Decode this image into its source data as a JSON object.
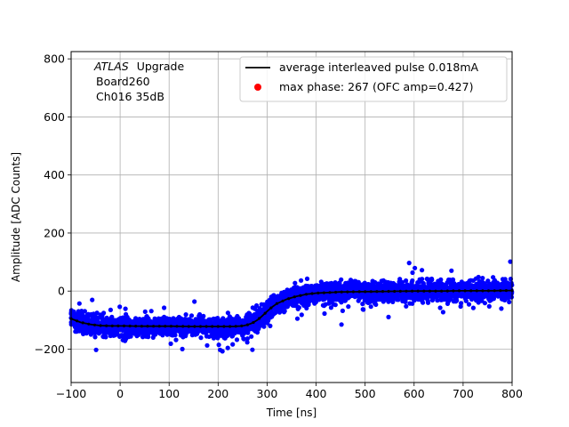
{
  "chart_data": {
    "type": "scatter",
    "xlabel": "Time [ns]",
    "ylabel": "Amplitude [ADC Counts]",
    "xlim": [
      -100,
      800
    ],
    "ylim": [
      -315,
      825
    ],
    "xticks": [
      -100,
      0,
      100,
      200,
      300,
      400,
      500,
      600,
      700,
      800
    ],
    "yticks": [
      -200,
      0,
      200,
      400,
      600,
      800
    ],
    "grid": true,
    "legend_position": "top-right",
    "annotation": {
      "italic": "ATLAS",
      "lines": [
        "Upgrade",
        "Board260",
        "Ch016 35dB"
      ]
    },
    "series": [
      {
        "name": "average interleaved pulse 0.018mA",
        "kind": "line",
        "color": "#000000",
        "x": [
          -100,
          -80,
          -60,
          -40,
          -20,
          0,
          50,
          100,
          150,
          200,
          230,
          250,
          260,
          270,
          280,
          290,
          300,
          310,
          320,
          340,
          360,
          380,
          400,
          450,
          500,
          550,
          600,
          650,
          700,
          750,
          800
        ],
        "y": [
          -95,
          -108,
          -115,
          -119,
          -120,
          -120,
          -121,
          -121,
          -122,
          -122,
          -122,
          -120,
          -116,
          -110,
          -100,
          -86,
          -70,
          -55,
          -43,
          -28,
          -18,
          -11,
          -7,
          -3,
          -2,
          -1,
          0,
          0,
          1,
          1,
          2
        ]
      },
      {
        "name": "max phase: 267 (OFC amp=0.427)",
        "kind": "scatter",
        "color": "#ff0000"
      },
      {
        "kind": "scatter-cloud",
        "color": "#0000ff",
        "spread": 30,
        "outlier_spread": 75
      }
    ]
  }
}
